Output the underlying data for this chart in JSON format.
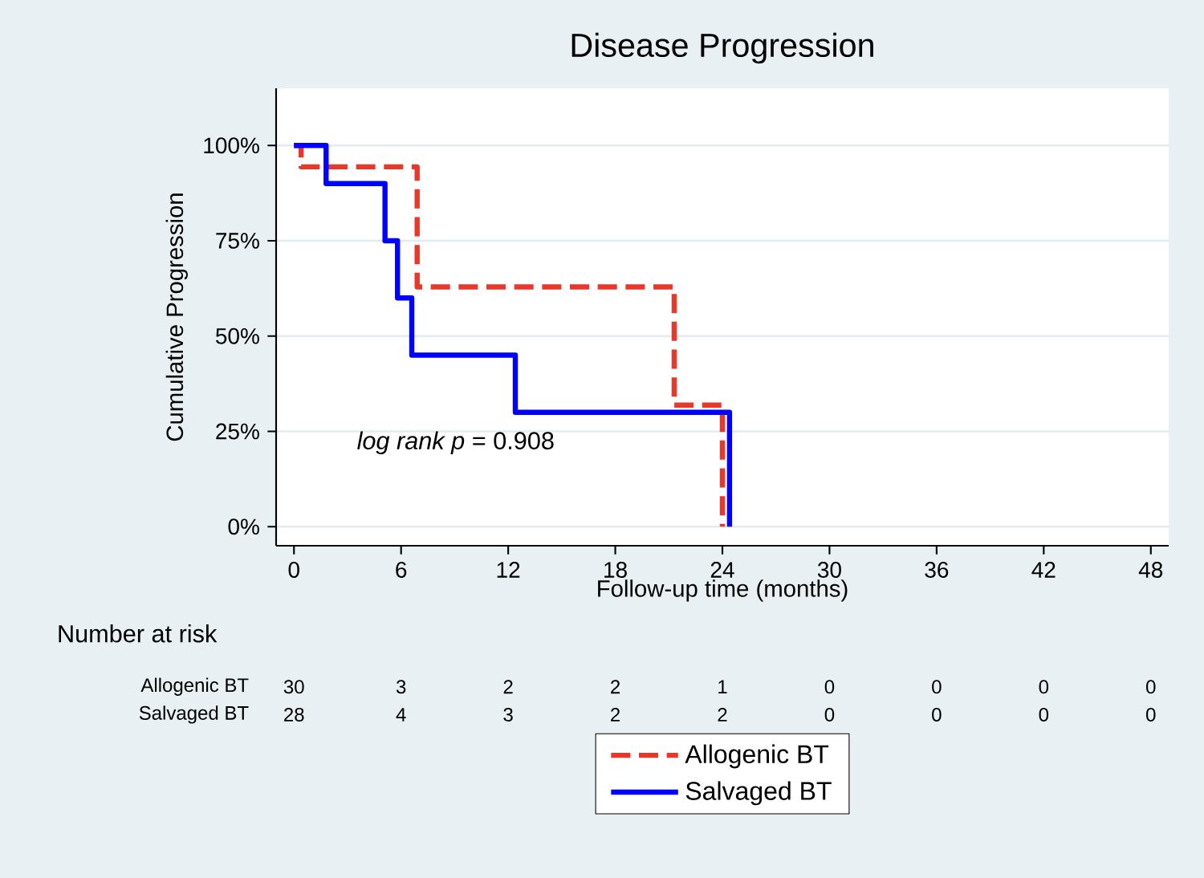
{
  "chart_data": {
    "type": "step",
    "title": "Disease Progression",
    "xlabel": "Follow-up time (months)",
    "ylabel": "Cumulative Progression",
    "annotations": [
      "*log rank p* = 0.908",
      "Number at risk",
      "Allogenic BT",
      "30",
      "3",
      "2",
      "2",
      "1",
      "0",
      "0",
      "0",
      "0",
      "Salvaged BT",
      "28",
      "4",
      "3",
      "2",
      "2",
      "0",
      "0",
      "0",
      "0"
    ],
    "series": [
      {
        "name": "Allogenic BT",
        "color": "#e8382a",
        "line_style": "dashed",
        "x": [
          0,
          0.4,
          6.9,
          21.3,
          24.0
        ],
        "values": [
          100,
          94.4,
          62.9,
          31.9,
          0
        ]
      },
      {
        "name": "Salvaged BT",
        "color": "#0000ff",
        "line_style": "solid",
        "x": [
          0,
          1.8,
          5.1,
          5.8,
          6.6,
          12.4,
          24.4
        ],
        "values": [
          100,
          90,
          75,
          60,
          45,
          30,
          0
        ]
      }
    ],
    "xlim": [
      -1,
      49
    ],
    "ylim": [
      -5,
      115
    ],
    "xticks": [
      0,
      6,
      12,
      18,
      24,
      30,
      36,
      42,
      48
    ],
    "yticks": [
      {
        "value": 0,
        "label": "0%"
      },
      {
        "value": 25,
        "label": "25%"
      },
      {
        "value": 50,
        "label": "50%"
      },
      {
        "value": 75,
        "label": "75%"
      },
      {
        "value": 100,
        "label": "100%"
      }
    ],
    "grid": "y",
    "legend": "bottom",
    "marker": "none"
  }
}
